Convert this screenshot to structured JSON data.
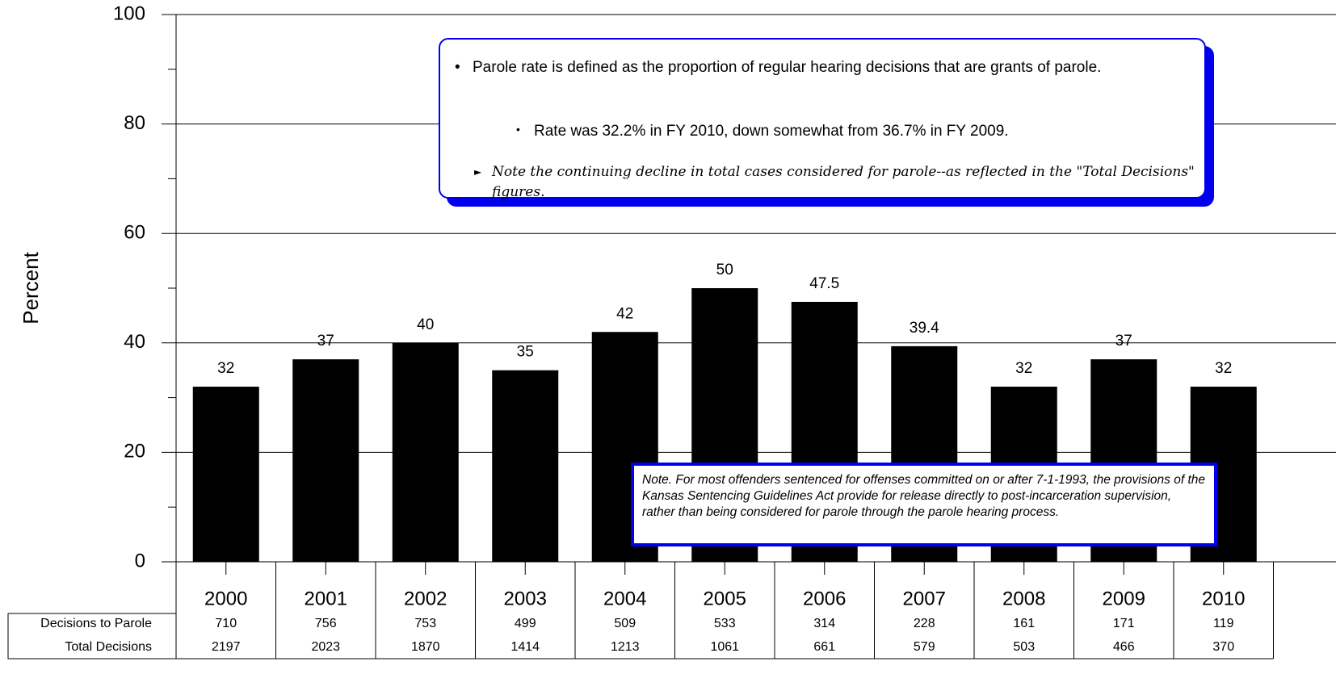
{
  "chart_data": {
    "type": "bar",
    "y_label": "Percent",
    "categories": [
      "2000",
      "2001",
      "2002",
      "2003",
      "2004",
      "2005",
      "2006",
      "2007",
      "2008",
      "2009",
      "2010"
    ],
    "values": [
      32,
      37,
      40,
      35,
      42,
      50,
      47.5,
      39.4,
      32,
      37,
      32
    ],
    "color": "#000000",
    "ylim": [
      0,
      100
    ],
    "yticks": [
      0,
      20,
      40,
      60,
      80,
      100
    ],
    "minor_yticks": [
      10,
      30,
      50,
      70,
      90
    ],
    "grid": true,
    "table": {
      "rows": [
        {
          "label": "Decisions to Parole",
          "values": [
            710,
            756,
            753,
            499,
            509,
            533,
            314,
            228,
            161,
            171,
            119
          ]
        },
        {
          "label": "Total Decisions",
          "values": [
            2197,
            2023,
            1870,
            1414,
            1213,
            1061,
            661,
            579,
            503,
            466,
            370
          ]
        }
      ]
    },
    "annotations": {
      "bullet_1": "Parole rate is defined as the proportion of regular hearing decisions that are grants of parole.",
      "bullet_2": "Rate was 32.2% in FY 2010, down somewhat from 36.7% in FY 2009.",
      "bullet_3": "Note the continuing decline in total cases considered for parole--as reflected in the \"Total Decisions\" figures.",
      "note": "Note.  For most offenders sentenced for offenses committed on or after 7-1-1993, the provisions of  the Kansas Sentencing Guidelines Act provide for release directly to post-incarceration supervision, rather than being considered for parole through the parole hearing process."
    }
  }
}
